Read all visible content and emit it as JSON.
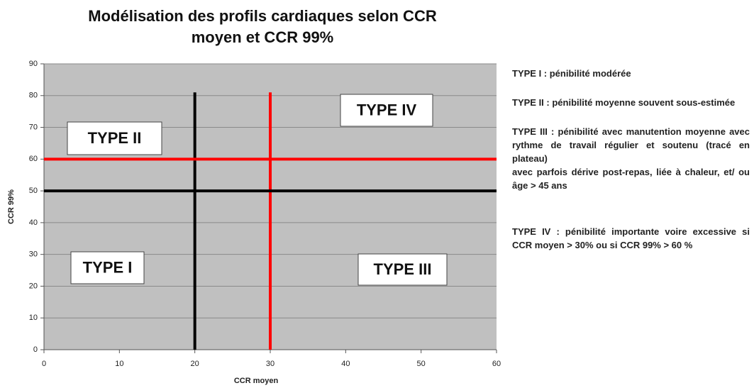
{
  "chart_data": {
    "type": "line",
    "title": "Modélisation des profils cardiaques selon CCR moyen et CCR 99%",
    "x_label": "CCR moyen",
    "y_label": "CCR 99%",
    "xlim": [
      0,
      60
    ],
    "xticks": [
      0,
      10,
      20,
      30,
      40,
      50,
      60
    ],
    "ylim": [
      0,
      90
    ],
    "yticks": [
      0,
      10,
      20,
      30,
      40,
      50,
      60,
      70,
      80,
      90
    ],
    "grid": true,
    "background": "#c0c0c0",
    "series": [
      {
        "color": "#000000",
        "x": [
          20,
          20
        ],
        "values": [
          0,
          81
        ]
      },
      {
        "color": "#ff0000",
        "x": [
          30,
          30
        ],
        "values": [
          0,
          81
        ]
      },
      {
        "color": "#000000",
        "x": [
          0,
          60
        ],
        "values": [
          50,
          50
        ]
      },
      {
        "color": "#ff0000",
        "x": [
          0,
          60
        ],
        "values": [
          60,
          60
        ]
      }
    ],
    "annotations": [
      "TYPE II",
      "TYPE IV",
      "TYPE I",
      "TYPE III"
    ],
    "notes": [
      "TYPE I : pénibilité modérée",
      "TYPE II : pénibilité moyenne souvent sous-estimée",
      "TYPE III : pénibilité avec manutention moyenne avec rythme de travail régulier et soutenu (tracé en plateau)",
      "avec parfois dérive post-repas, liée à chaleur, et/ ou âge > 45 ans",
      "TYPE IV : pénibilité importante voire excessive si CCR moyen > 30% ou si CCR 99% > 60 %"
    ]
  }
}
